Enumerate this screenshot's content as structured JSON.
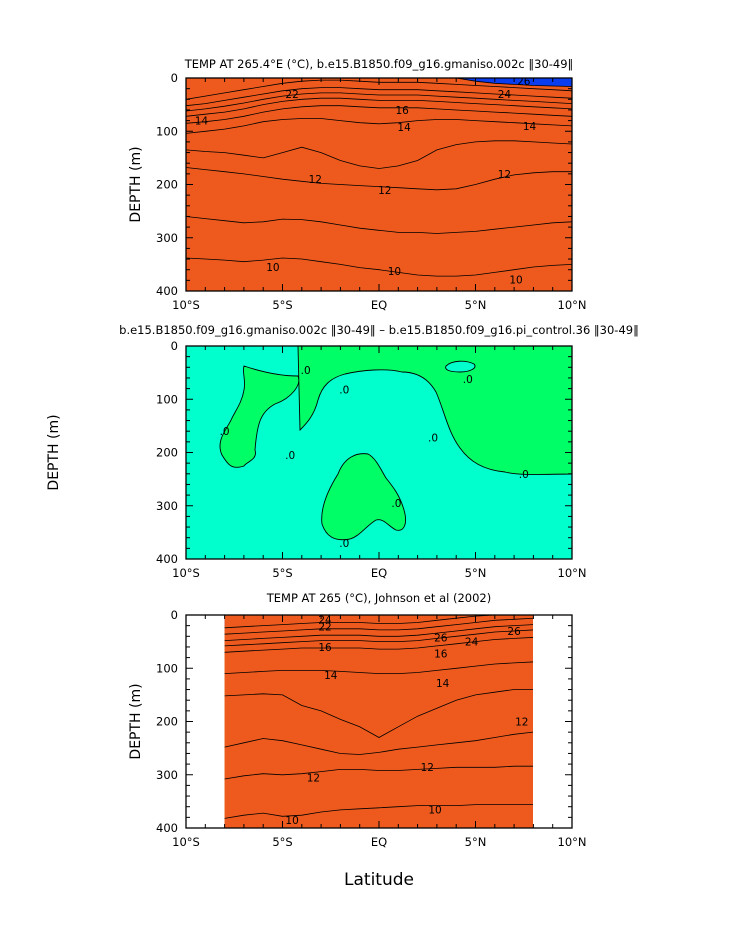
{
  "figure": {
    "x_axis_label": "Latitude",
    "x_tick_labels": [
      "10°S",
      "5°S",
      "EQ",
      "5°N",
      "10°N"
    ],
    "y_tick_labels": [
      "0",
      "100",
      "200",
      "300",
      "400"
    ],
    "y_axis_label": "DEPTH (m)"
  },
  "chart_data": [
    {
      "type": "contour",
      "title": "TEMP AT 265.4°E (°C), b.e15.B1850.f09_g16.gmaniso.002c ‖30-49‖",
      "xlabel": "Latitude",
      "ylabel": "DEPTH (m)",
      "xlim": [
        -10,
        10
      ],
      "ylim": [
        400,
        0
      ],
      "colors": {
        "layers": [
          "#0a3cf0",
          "#1f7fe8",
          "#0fa7f0",
          "#19cff5",
          "#38e8ff",
          "#36d8a0",
          "#35e85e",
          "#9df03c",
          "#e8e84a",
          "#f0c040",
          "#f08a30",
          "#ee5a1e",
          "#e0241a"
        ]
      },
      "isotherms": [
        {
          "level": 10,
          "depth": [
            338,
            340,
            342,
            345,
            342,
            338,
            340,
            345,
            350,
            356,
            360,
            365,
            370,
            372,
            372,
            370,
            365,
            360,
            355,
            352,
            350
          ]
        },
        {
          "level": 11,
          "depth": [
            260,
            264,
            268,
            272,
            270,
            265,
            266,
            270,
            276,
            282,
            286,
            290,
            290,
            292,
            290,
            288,
            284,
            280,
            276,
            272,
            270
          ]
        },
        {
          "level": 12,
          "depth": [
            168,
            172,
            176,
            180,
            185,
            190,
            194,
            198,
            200,
            202,
            204,
            206,
            208,
            210,
            208,
            200,
            190,
            182,
            178,
            176,
            176
          ]
        },
        {
          "level": 13,
          "depth": [
            135,
            138,
            140,
            145,
            150,
            140,
            130,
            140,
            155,
            165,
            170,
            165,
            155,
            135,
            125,
            120,
            118,
            118,
            120,
            122,
            124
          ]
        },
        {
          "level": 14,
          "depth": [
            104,
            100,
            96,
            90,
            82,
            78,
            76,
            76,
            80,
            84,
            86,
            84,
            80,
            78,
            78,
            80,
            82,
            84,
            86,
            88,
            90
          ]
        },
        {
          "level": 16,
          "depth": [
            85,
            82,
            78,
            72,
            64,
            58,
            54,
            52,
            52,
            54,
            56,
            56,
            56,
            58,
            60,
            62,
            64,
            66,
            68,
            70,
            72
          ]
        },
        {
          "level": 18,
          "depth": [
            72,
            68,
            64,
            58,
            50,
            44,
            40,
            38,
            38,
            40,
            42,
            42,
            42,
            44,
            46,
            48,
            50,
            52,
            54,
            56,
            58
          ]
        },
        {
          "level": 20,
          "depth": [
            62,
            58,
            53,
            47,
            40,
            34,
            30,
            28,
            28,
            30,
            32,
            32,
            32,
            34,
            36,
            38,
            40,
            42,
            44,
            46,
            48
          ]
        },
        {
          "level": 22,
          "depth": [
            52,
            48,
            42,
            36,
            30,
            24,
            20,
            18,
            18,
            20,
            22,
            22,
            22,
            24,
            26,
            28,
            30,
            32,
            34,
            36,
            38
          ]
        },
        {
          "level": 24,
          "depth": [
            40,
            34,
            28,
            22,
            16,
            10,
            6,
            4,
            4,
            6,
            8,
            8,
            8,
            10,
            12,
            14,
            16,
            18,
            20,
            22,
            24
          ]
        },
        {
          "level": 26,
          "depth": [
            0,
            0,
            0,
            0,
            0,
            0,
            0,
            0,
            0,
            0,
            0,
            0,
            0,
            0,
            0,
            6,
            10,
            12,
            14,
            15,
            16
          ]
        }
      ],
      "labels": [
        {
          "text": "26",
          "lat": 7.5,
          "depth": 6
        },
        {
          "text": "24",
          "lat": 6.5,
          "depth": 30
        },
        {
          "text": "22",
          "lat": -4.5,
          "depth": 30
        },
        {
          "text": "16",
          "lat": 1.2,
          "depth": 60
        },
        {
          "text": "14",
          "lat": -9.2,
          "depth": 80
        },
        {
          "text": "14",
          "lat": 1.3,
          "depth": 92
        },
        {
          "text": "14",
          "lat": 7.8,
          "depth": 90
        },
        {
          "text": "12",
          "lat": -3.3,
          "depth": 190
        },
        {
          "text": "12",
          "lat": 0.3,
          "depth": 210
        },
        {
          "text": "12",
          "lat": 6.5,
          "depth": 180
        },
        {
          "text": "10",
          "lat": -5.5,
          "depth": 355
        },
        {
          "text": "10",
          "lat": 0.8,
          "depth": 362
        },
        {
          "text": "10",
          "lat": 7.1,
          "depth": 378
        }
      ]
    },
    {
      "type": "contour",
      "title": "b.e15.B1850.f09_g16.gmaniso.002c ‖30-49‖ – b.e15.B1850.f09_g16.pi_control.36 ‖30-49‖",
      "xlabel": "Latitude",
      "ylabel": "DEPTH (m)",
      "xlim": [
        -10,
        10
      ],
      "ylim": [
        400,
        0
      ],
      "colors": {
        "background": "#00ffcc",
        "positive": "#00ff66"
      },
      "labels": [
        {
          "text": ".0",
          "lat": -3.8,
          "depth": 45
        },
        {
          "text": ".0",
          "lat": -8.0,
          "depth": 160
        },
        {
          "text": ".0",
          "lat": -4.6,
          "depth": 205
        },
        {
          "text": ".0",
          "lat": -1.8,
          "depth": 82
        },
        {
          "text": ".0",
          "lat": 2.8,
          "depth": 172
        },
        {
          "text": ".0",
          "lat": 4.6,
          "depth": 62
        },
        {
          "text": ".0",
          "lat": 7.5,
          "depth": 240
        },
        {
          "text": ".0",
          "lat": 0.9,
          "depth": 295
        },
        {
          "text": ".0",
          "lat": -1.8,
          "depth": 370
        }
      ]
    },
    {
      "type": "contour",
      "title": "TEMP AT 265 (°C), Johnson et al (2002)",
      "xlabel": "Latitude",
      "ylabel": "DEPTH (m)",
      "xlim": [
        -10,
        10
      ],
      "ylim": [
        400,
        0
      ],
      "data_lat_range": [
        -8,
        8
      ],
      "colors": {
        "layers": [
          "#0a3cf0",
          "#1f7fe8",
          "#0fa7f0",
          "#19cff5",
          "#38e8ff",
          "#36d8a0",
          "#35e85e",
          "#9df03c",
          "#e8e84a",
          "#f0c040",
          "#f08a30",
          "#ee5a1e",
          "#e0241a"
        ]
      },
      "isotherms": [
        {
          "level": 10,
          "depth": [
            382,
            376,
            372,
            378,
            376,
            370,
            366,
            364,
            362,
            360,
            358,
            358,
            358,
            356,
            356,
            356,
            356
          ]
        },
        {
          "level": 11,
          "depth": [
            308,
            302,
            298,
            300,
            298,
            294,
            290,
            290,
            292,
            292,
            290,
            288,
            286,
            286,
            286,
            284,
            284
          ]
        },
        {
          "level": 12,
          "depth": [
            248,
            240,
            232,
            236,
            244,
            252,
            260,
            262,
            258,
            252,
            248,
            244,
            240,
            236,
            230,
            224,
            220
          ]
        },
        {
          "level": 13,
          "depth": [
            152,
            150,
            148,
            150,
            170,
            180,
            196,
            210,
            230,
            210,
            190,
            175,
            160,
            150,
            145,
            140,
            140
          ]
        },
        {
          "level": 14,
          "depth": [
            110,
            108,
            106,
            104,
            104,
            104,
            106,
            108,
            110,
            110,
            108,
            104,
            100,
            96,
            92,
            90,
            88
          ]
        },
        {
          "level": 16,
          "depth": [
            70,
            68,
            66,
            64,
            62,
            62,
            62,
            62,
            64,
            64,
            62,
            58,
            54,
            50,
            46,
            44,
            42
          ]
        },
        {
          "level": 18,
          "depth": [
            58,
            56,
            54,
            52,
            50,
            48,
            48,
            48,
            50,
            50,
            48,
            44,
            40,
            36,
            32,
            30,
            28
          ]
        },
        {
          "level": 20,
          "depth": [
            48,
            46,
            44,
            42,
            40,
            38,
            38,
            38,
            40,
            40,
            38,
            34,
            30,
            26,
            22,
            20,
            18
          ]
        },
        {
          "level": 22,
          "depth": [
            36,
            34,
            32,
            30,
            28,
            26,
            26,
            26,
            28,
            28,
            26,
            22,
            18,
            14,
            10,
            8,
            6
          ]
        },
        {
          "level": 24,
          "depth": [
            24,
            22,
            20,
            18,
            16,
            14,
            14,
            14,
            16,
            16,
            14,
            10,
            6,
            2,
            0,
            0,
            0
          ]
        },
        {
          "level": 26,
          "depth": [
            0,
            0,
            0,
            0,
            0,
            0,
            0,
            0,
            0,
            0,
            0,
            0,
            0,
            0,
            0,
            0,
            0
          ]
        }
      ],
      "labels": [
        {
          "text": "24",
          "lat": -2.8,
          "depth": 8
        },
        {
          "text": "22",
          "lat": -2.8,
          "depth": 22
        },
        {
          "text": "26",
          "lat": 3.2,
          "depth": 42
        },
        {
          "text": "24",
          "lat": 4.8,
          "depth": 50
        },
        {
          "text": "26",
          "lat": 7.0,
          "depth": 30
        },
        {
          "text": "16",
          "lat": -2.8,
          "depth": 60
        },
        {
          "text": "16",
          "lat": 3.2,
          "depth": 72
        },
        {
          "text": "14",
          "lat": -2.5,
          "depth": 113
        },
        {
          "text": "14",
          "lat": 3.3,
          "depth": 128
        },
        {
          "text": "12",
          "lat": 7.4,
          "depth": 200
        },
        {
          "text": "12",
          "lat": -3.4,
          "depth": 305
        },
        {
          "text": "12",
          "lat": 2.5,
          "depth": 285
        },
        {
          "text": "10",
          "lat": -4.5,
          "depth": 385
        },
        {
          "text": "10",
          "lat": 2.9,
          "depth": 365
        }
      ]
    }
  ]
}
